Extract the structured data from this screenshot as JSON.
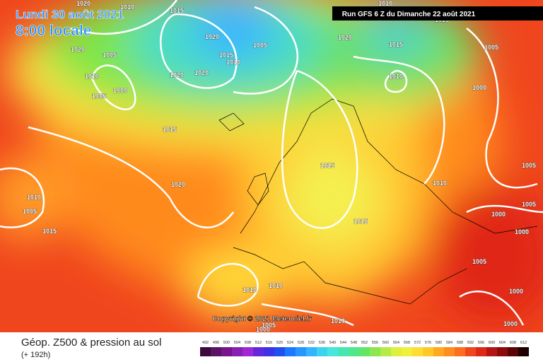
{
  "header": {
    "date": "Lundi 30 août 2021",
    "time": "8:00 locale",
    "run": "Run GFS 6 Z du Dimanche 22 août 2021"
  },
  "copyright": "Copyright © 2021 Meteociel.fr",
  "footer": {
    "title": "Géop. Z500 & pression au sol",
    "lead": "(+ 192h)"
  },
  "scale": {
    "labels": [
      "492",
      "496",
      "500",
      "504",
      "508",
      "512",
      "516",
      "520",
      "524",
      "528",
      "532",
      "536",
      "540",
      "544",
      "548",
      "552",
      "556",
      "560",
      "564",
      "568",
      "572",
      "576",
      "580",
      "584",
      "588",
      "592",
      "596",
      "600",
      "604",
      "608",
      "612"
    ]
  },
  "isobar_labels": [
    "1020",
    "1010",
    "1015",
    "1010",
    "1015",
    "1020",
    "1005",
    "1020",
    "1015",
    "1010",
    "1005",
    "1020",
    "1015",
    "1005",
    "1010",
    "1005",
    "1000",
    "1020",
    "1020",
    "1010",
    "1000",
    "1015",
    "1015",
    "1005",
    "1020",
    "1010",
    "1010",
    "1005",
    "1005",
    "1000",
    "1015",
    "1015",
    "1000",
    "1005",
    "1010",
    "1010",
    "1000",
    "1010",
    "1005",
    "1000",
    "1000"
  ]
}
